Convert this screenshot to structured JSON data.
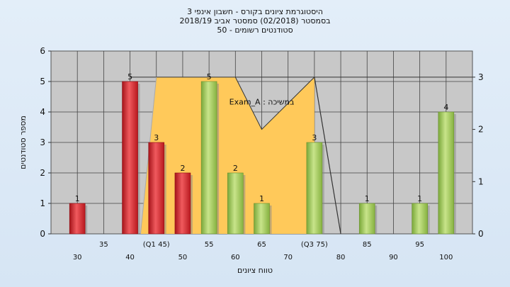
{
  "chart_data": {
    "type": "bar",
    "title_lines": [
      "היסטוגרמת ציונים בקורס - חשבון אינפי 3",
      "בסמסטר  (02/2018)  סמסטר אביב 2018/19",
      "סטודנטים רשומים - 50"
    ],
    "legend_label": "Exam_A : במשיכה",
    "xlabel": "טווח ציונים",
    "ylabel": "מספר סטודנטים",
    "ylim": [
      0,
      6
    ],
    "y_ticks": [
      0,
      1,
      2,
      3,
      4,
      5,
      6
    ],
    "y2lim": [
      0,
      3.5
    ],
    "y2_ticks": [
      0,
      1,
      2,
      3
    ],
    "xlim": [
      25,
      105
    ],
    "x_ticks_lower": [
      {
        "x": 30,
        "label": "30"
      },
      {
        "x": 40,
        "label": "40"
      },
      {
        "x": 50,
        "label": "50"
      },
      {
        "x": 60,
        "label": "60"
      },
      {
        "x": 70,
        "label": "70"
      },
      {
        "x": 80,
        "label": "80"
      },
      {
        "x": 90,
        "label": "90"
      },
      {
        "x": 100,
        "label": "100"
      }
    ],
    "x_ticks_upper": [
      {
        "x": 35,
        "label": "35"
      },
      {
        "x": 45,
        "label": "(Q1 45)"
      },
      {
        "x": 55,
        "label": "55"
      },
      {
        "x": 65,
        "label": "65"
      },
      {
        "x": 75,
        "label": "(Q3 75)"
      },
      {
        "x": 85,
        "label": "85"
      },
      {
        "x": 95,
        "label": "95"
      }
    ],
    "bars": [
      {
        "x": 30,
        "value": 1,
        "color": "red"
      },
      {
        "x": 40,
        "value": 5,
        "color": "red"
      },
      {
        "x": 45,
        "value": 3,
        "color": "red"
      },
      {
        "x": 50,
        "value": 2,
        "color": "red"
      },
      {
        "x": 55,
        "value": 5,
        "color": "green"
      },
      {
        "x": 60,
        "value": 2,
        "color": "green"
      },
      {
        "x": 65,
        "value": 1,
        "color": "green"
      },
      {
        "x": 75,
        "value": 3,
        "color": "green"
      },
      {
        "x": 85,
        "value": 1,
        "color": "green"
      },
      {
        "x": 95,
        "value": 1,
        "color": "green"
      },
      {
        "x": 100,
        "value": 4,
        "color": "green"
      }
    ],
    "bar_label_labels": [
      "1",
      "5",
      "3",
      "2",
      "5",
      "2",
      "1",
      "3",
      "1",
      "1",
      "4"
    ],
    "box": {
      "q1": 45,
      "q3": 75,
      "median": 65,
      "top": 3,
      "median_level": 2,
      "whisker_low": 42,
      "whisker_high": 80
    },
    "grid": true,
    "colors": {
      "background": "#c8c8c8",
      "box_fill": "#ffc95a",
      "red_bar": "#d9262c",
      "green_bar": "#9cc84a"
    }
  }
}
